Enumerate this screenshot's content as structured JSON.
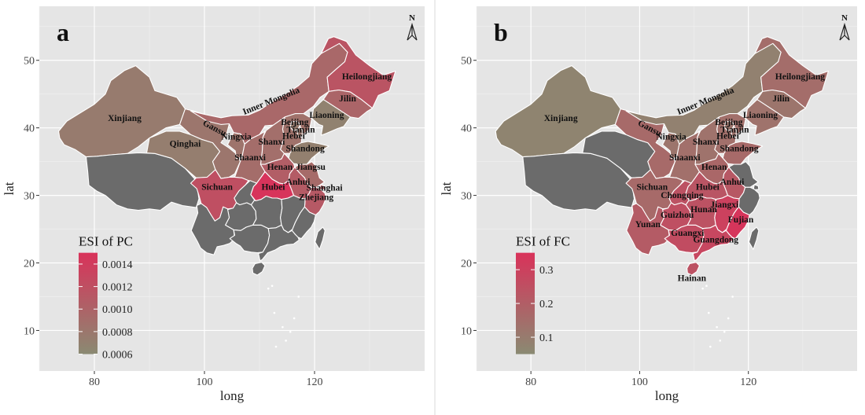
{
  "colors": {
    "panel_bg": "#e5e5e5",
    "grid": "#ffffff",
    "no_data": "#6b6b6b",
    "low": "#8a8a72",
    "high": "#d9325a"
  },
  "panels": [
    {
      "letter": "a",
      "north": "N",
      "xlabel": "long",
      "ylabel": "lat",
      "xticks": [
        "80",
        "100",
        "120"
      ],
      "yticks": [
        "10",
        "20",
        "30",
        "40",
        "50"
      ],
      "legend": {
        "title": "ESI of PC",
        "ticks": [
          "0.0014",
          "0.0012",
          "0.0010",
          "0.0008",
          "0.0006"
        ],
        "min": 0.0006,
        "max": 0.0015
      },
      "regions": [
        {
          "name": "Xinjiang",
          "value": 0.00075
        },
        {
          "name": "Qinghai",
          "value": 0.00072
        },
        {
          "name": "Gansu",
          "value": 0.0008
        },
        {
          "name": "Inner Mongolia",
          "value": 0.00095
        },
        {
          "name": "Heilongjiang",
          "value": 0.00115
        },
        {
          "name": "Jilin",
          "value": 0.00098
        },
        {
          "name": "Liaoning",
          "value": 0.00068
        },
        {
          "name": "Beijing",
          "value": 0.00075
        },
        {
          "name": "Tianjin",
          "value": 0.00078
        },
        {
          "name": "Hebei",
          "value": 0.00085
        },
        {
          "name": "Shanxi",
          "value": 0.00088
        },
        {
          "name": "Shandong",
          "value": 0.0007
        },
        {
          "name": "Ningxia",
          "value": 0.00083
        },
        {
          "name": "Shaanxi",
          "value": 0.0009
        },
        {
          "name": "Henan",
          "value": 0.00105
        },
        {
          "name": "Jiangsu",
          "value": 0.00092
        },
        {
          "name": "Anhui",
          "value": 0.00108
        },
        {
          "name": "Shanghai",
          "value": 0.001
        },
        {
          "name": "Zhejiang",
          "value": 0.0011
        },
        {
          "name": "Sichuan",
          "value": 0.0012
        },
        {
          "name": "Hubei",
          "value": 0.00148
        }
      ],
      "labels_shown": [
        "Xinjiang",
        "Qinghai",
        "Gansu",
        "Inner Mongolia",
        "Heilongjiang",
        "Jilin",
        "Liaoning",
        "Beijing",
        "Tianjin",
        "Hebei",
        "Shanxi",
        "Shandong",
        "Ningxia",
        "Shaanxi",
        "Henan",
        "Jiangsu",
        "Anhui",
        "Shanghai",
        "Zhejiang",
        "Sichuan",
        "Hubei"
      ]
    },
    {
      "letter": "b",
      "north": "N",
      "xlabel": "long",
      "ylabel": "lat",
      "xticks": [
        "80",
        "100",
        "120"
      ],
      "yticks": [
        "10",
        "20",
        "30",
        "40",
        "50"
      ],
      "legend": {
        "title": "ESI of FC",
        "ticks": [
          "0.3",
          "0.2",
          "0.1"
        ],
        "min": 0.05,
        "max": 0.35
      },
      "regions": [
        {
          "name": "Xinjiang",
          "value": 0.07
        },
        {
          "name": "Gansu",
          "value": 0.16
        },
        {
          "name": "Inner Mongolia",
          "value": 0.08
        },
        {
          "name": "Heilongjiang",
          "value": 0.15
        },
        {
          "name": "Jilin",
          "value": 0.12
        },
        {
          "name": "Liaoning",
          "value": 0.13
        },
        {
          "name": "Beijing",
          "value": 0.12
        },
        {
          "name": "Tianjin",
          "value": 0.13
        },
        {
          "name": "Hebei",
          "value": 0.14
        },
        {
          "name": "Shanxi",
          "value": 0.13
        },
        {
          "name": "Shandong",
          "value": 0.16
        },
        {
          "name": "Ningxia",
          "value": 0.12
        },
        {
          "name": "Shaanxi",
          "value": 0.14
        },
        {
          "name": "Henan",
          "value": 0.17
        },
        {
          "name": "Anhui",
          "value": 0.22
        },
        {
          "name": "Hubei",
          "value": 0.23
        },
        {
          "name": "Sichuan",
          "value": 0.16
        },
        {
          "name": "Chongqing",
          "value": 0.24
        },
        {
          "name": "Hunan",
          "value": 0.24
        },
        {
          "name": "Jiangxi",
          "value": 0.3
        },
        {
          "name": "Fujian",
          "value": 0.34
        },
        {
          "name": "Guizhou",
          "value": 0.25
        },
        {
          "name": "Yunan",
          "value": 0.21
        },
        {
          "name": "Guangxi",
          "value": 0.26
        },
        {
          "name": "Guangdong",
          "value": 0.28
        },
        {
          "name": "Hainan",
          "value": 0.24
        }
      ],
      "labels_shown": [
        "Xinjiang",
        "Gansu",
        "Inner Mongolia",
        "Heilongjiang",
        "Jilin",
        "Liaoning",
        "Beijing",
        "Tianjin",
        "Hebei",
        "Shanxi",
        "Shandong",
        "Ningxia",
        "Shaanxi",
        "Henan",
        "Anhui",
        "Hubei",
        "Sichuan",
        "Chongqing",
        "Hunan",
        "Jiangxi",
        "Fujian",
        "Guizhou",
        "Yunan",
        "Guangxi",
        "Guangdong",
        "Hainan"
      ]
    }
  ]
}
